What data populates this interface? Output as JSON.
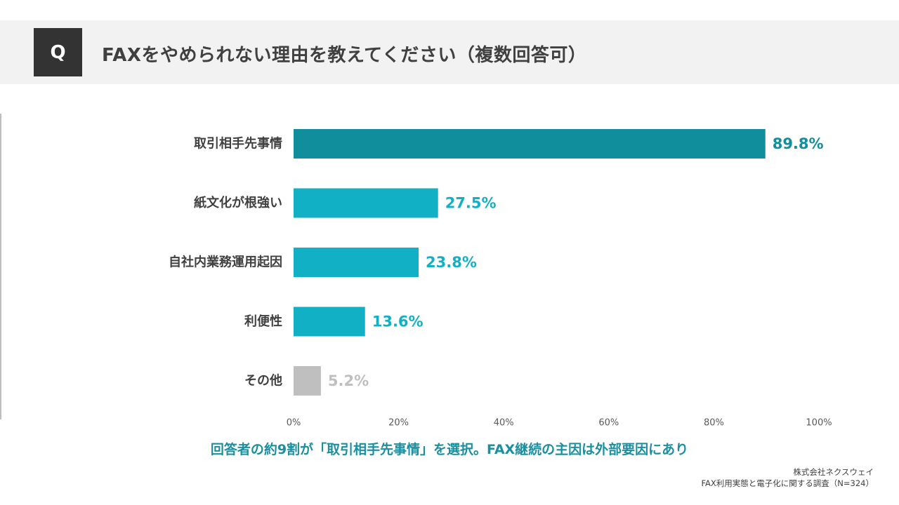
{
  "header": {
    "q_label": "Q",
    "title": "FAXをやめられない理由を教えてください（複数回答可）"
  },
  "chart_data": {
    "type": "bar",
    "orientation": "horizontal",
    "categories": [
      "取引相手先事情",
      "紙文化が根強い",
      "自社内業務運用起因",
      "利便性",
      "その他"
    ],
    "values": [
      89.8,
      27.5,
      23.8,
      13.6,
      5.2
    ],
    "value_labels": [
      "89.8%",
      "27.5%",
      "23.8%",
      "13.6%",
      "5.2%"
    ],
    "bar_colors": [
      "#108e9c",
      "#12b0c4",
      "#12b0c4",
      "#12b0c4",
      "#bfbfbf"
    ],
    "label_colors": [
      "#108e9c",
      "#12b0c4",
      "#12b0c4",
      "#12b0c4",
      "#bfbfbf"
    ],
    "xlim": [
      0,
      100
    ],
    "xticks": [
      0,
      20,
      40,
      60,
      80,
      100
    ],
    "xtick_labels": [
      "0%",
      "20%",
      "40%",
      "60%",
      "80%",
      "100%"
    ],
    "grid": false,
    "legend": "none"
  },
  "summary": "回答者の約9割が「取引相手先事情」を選択。FAX継続の主因は外部要因にあり",
  "credit": {
    "company": "株式会社ネクスウェイ",
    "survey": "FAX利用実態と電子化に関する調査（N=324）"
  },
  "colors": {
    "header_bg": "#f2f2f2",
    "q_box": "#333333",
    "accent": "#1b8fa0"
  }
}
